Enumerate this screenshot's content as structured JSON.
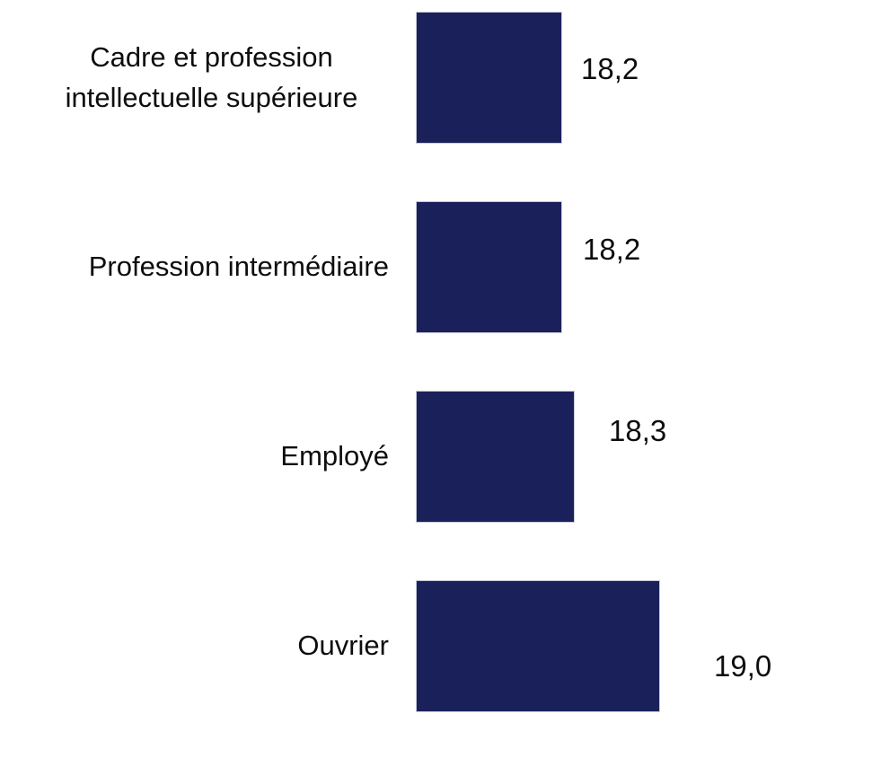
{
  "chart_data": {
    "type": "bar",
    "orientation": "horizontal",
    "title": "",
    "xlabel": "",
    "ylabel": "",
    "categories": [
      "Cadre et profession intellectuelle supérieure",
      "Profession intermédiaire",
      "Employé",
      "Ouvrier"
    ],
    "values": [
      18.2,
      18.2,
      18.3,
      19.0
    ],
    "value_labels": [
      "18,2",
      "18,2",
      "18,3",
      "19,0"
    ],
    "xlim": [
      17,
      19.5
    ],
    "grid": false,
    "legend": false,
    "axis_visible": false,
    "bar_color": "#1a215a",
    "bar_border_color": "#c9cbd8",
    "background_color": "#ffffff",
    "text_color": "#0d0d0d"
  }
}
